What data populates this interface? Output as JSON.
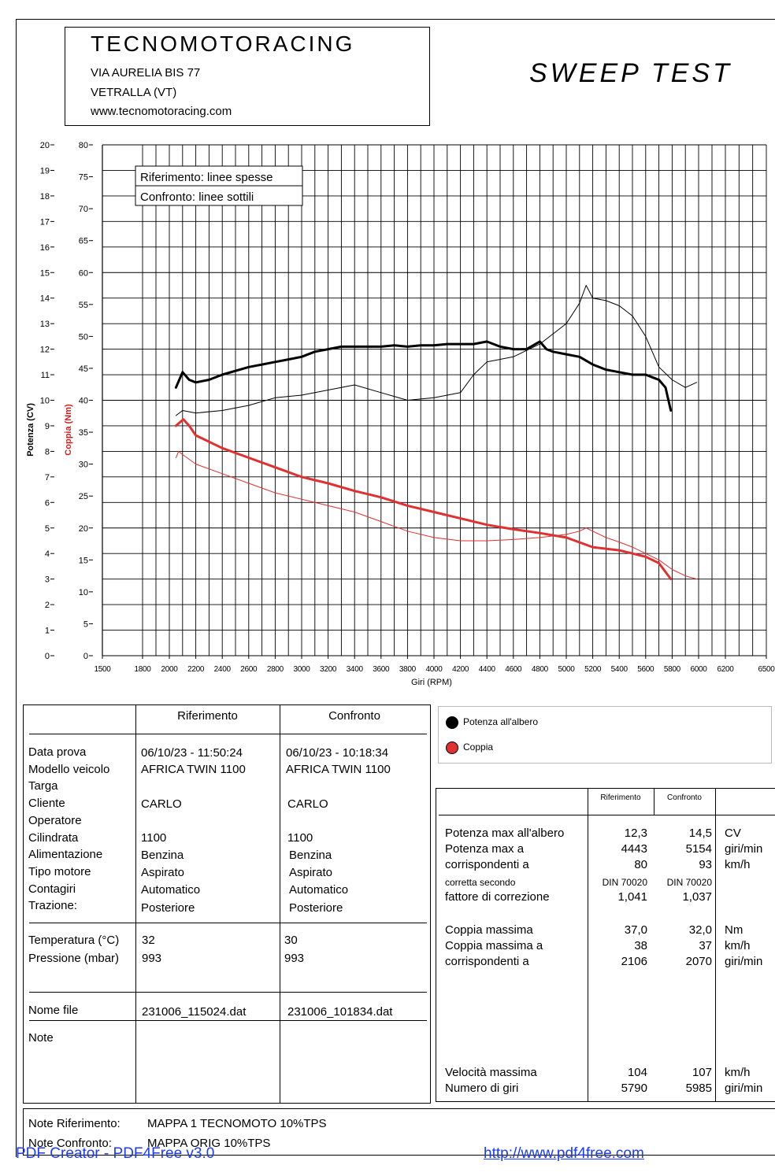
{
  "header": {
    "company": "TECNOMOTORACING",
    "address1": "VIA AURELIA BIS 77",
    "address2": "VETRALLA (VT)",
    "website": "www.tecnomotoracing.com",
    "title": "SWEEP TEST"
  },
  "chart_data": {
    "type": "line",
    "xlabel": "Giri (RPM)",
    "ylabel_left": "Potenza (CV)",
    "ylabel_right": "Coppia (Nm)",
    "x_ticks": [
      1500,
      1800,
      2000,
      2200,
      2400,
      2600,
      2800,
      3000,
      3200,
      3400,
      3600,
      3800,
      4000,
      4200,
      4400,
      4600,
      4800,
      5000,
      5200,
      5400,
      5600,
      5800,
      6000,
      6200,
      6500
    ],
    "xlim": [
      1500,
      6500
    ],
    "power_ticks": [
      0,
      1,
      2,
      3,
      4,
      5,
      6,
      7,
      8,
      9,
      10,
      11,
      12,
      13,
      14,
      15,
      16,
      17,
      18,
      19,
      20
    ],
    "power_lim": [
      0,
      20
    ],
    "torque_ticks": [
      0,
      5,
      10,
      15,
      20,
      25,
      30,
      35,
      40,
      45,
      50,
      55,
      60,
      65,
      70,
      75,
      80
    ],
    "torque_lim": [
      0,
      80
    ],
    "grid": true,
    "annotations": [
      "Riferimento: linee spesse",
      "Confronto: linee sottili"
    ],
    "legend": [
      "Potenza all'albero",
      "Coppia"
    ],
    "series": [
      {
        "name": "Potenza all'albero",
        "run": "Riferimento",
        "axis": "power",
        "color": "#000000",
        "width": 3,
        "x": [
          2050,
          2100,
          2150,
          2200,
          2300,
          2400,
          2600,
          2700,
          2800,
          2900,
          3000,
          3100,
          3200,
          3300,
          3400,
          3500,
          3600,
          3700,
          3800,
          3900,
          4000,
          4100,
          4200,
          4300,
          4400,
          4450,
          4500,
          4600,
          4700,
          4800,
          4850,
          4900,
          5000,
          5100,
          5200,
          5300,
          5400,
          5500,
          5600,
          5650,
          5700,
          5750,
          5790
        ],
        "y": [
          10.5,
          11.1,
          10.8,
          10.7,
          10.8,
          11.0,
          11.3,
          11.4,
          11.5,
          11.6,
          11.7,
          11.9,
          12.0,
          12.1,
          12.1,
          12.1,
          12.1,
          12.15,
          12.1,
          12.15,
          12.15,
          12.2,
          12.2,
          12.2,
          12.3,
          12.2,
          12.1,
          12.0,
          12.0,
          12.3,
          12.0,
          11.9,
          11.8,
          11.7,
          11.4,
          11.2,
          11.1,
          11.0,
          11.0,
          10.9,
          10.8,
          10.5,
          9.6
        ]
      },
      {
        "name": "Potenza all'albero",
        "run": "Confronto",
        "axis": "power",
        "color": "#000000",
        "width": 1,
        "x": [
          2050,
          2100,
          2200,
          2400,
          2600,
          2800,
          3000,
          3100,
          3200,
          3300,
          3400,
          3600,
          3800,
          4000,
          4200,
          4300,
          4400,
          4600,
          4800,
          5000,
          5100,
          5150,
          5200,
          5300,
          5400,
          5500,
          5600,
          5700,
          5800,
          5900,
          5985
        ],
        "y": [
          9.4,
          9.6,
          9.5,
          9.6,
          9.8,
          10.1,
          10.2,
          10.3,
          10.4,
          10.5,
          10.6,
          10.3,
          10.0,
          10.1,
          10.3,
          11.0,
          11.5,
          11.7,
          12.2,
          13.0,
          13.8,
          14.5,
          14.0,
          13.9,
          13.7,
          13.3,
          12.5,
          11.3,
          10.8,
          10.5,
          10.7
        ]
      },
      {
        "name": "Coppia",
        "run": "Riferimento",
        "axis": "torque",
        "color": "#e03030",
        "width": 3,
        "x": [
          2050,
          2106,
          2150,
          2200,
          2300,
          2400,
          2600,
          2800,
          3000,
          3200,
          3400,
          3600,
          3800,
          4000,
          4200,
          4400,
          4600,
          4800,
          5000,
          5200,
          5400,
          5500,
          5600,
          5700,
          5790
        ],
        "y": [
          36.0,
          37.0,
          36.0,
          34.5,
          33.5,
          32.5,
          31.0,
          29.5,
          28.0,
          27.0,
          25.8,
          24.8,
          23.5,
          22.5,
          21.5,
          20.5,
          19.8,
          19.2,
          18.5,
          17.0,
          16.5,
          16.0,
          15.5,
          14.5,
          12.0
        ]
      },
      {
        "name": "Coppia",
        "run": "Confronto",
        "axis": "torque",
        "color": "#e03030",
        "width": 1,
        "x": [
          2050,
          2070,
          2100,
          2200,
          2400,
          2600,
          2800,
          3000,
          3200,
          3400,
          3600,
          3800,
          4000,
          4200,
          4400,
          4600,
          4800,
          5000,
          5100,
          5150,
          5200,
          5300,
          5400,
          5500,
          5600,
          5700,
          5800,
          5900,
          5985
        ],
        "y": [
          31.0,
          32.0,
          31.5,
          30.0,
          28.5,
          27.0,
          25.5,
          24.5,
          23.5,
          22.5,
          21.0,
          19.5,
          18.5,
          18.0,
          18.0,
          18.2,
          18.5,
          19.0,
          19.5,
          20.0,
          19.5,
          18.5,
          17.8,
          17.0,
          16.0,
          15.0,
          13.5,
          12.5,
          12.0
        ]
      }
    ]
  },
  "legend_box": {
    "items": [
      {
        "label": "Potenza all'albero",
        "color": "#000000"
      },
      {
        "label": "Coppia",
        "color": "#e03030"
      }
    ]
  },
  "info_table": {
    "col_ref": "Riferimento",
    "col_cmp": "Confronto",
    "labels": [
      "Data prova",
      "Modello veicolo",
      "Targa",
      "Cliente",
      "Operatore",
      "Cilindrata",
      "Alimentazione",
      "Tipo motore",
      "Contagiri",
      "Trazione:"
    ],
    "ref_values": {
      "data": "06/10/23 - 11:50:24",
      "modello": "AFRICA TWIN 1100",
      "cliente": "CARLO",
      "cilindrata": "1100",
      "alimentazione": "Benzina",
      "tipo": "Aspirato",
      "contagiri": "Automatico",
      "trazione": "Posteriore"
    },
    "cmp_values": {
      "data": "06/10/23 - 10:18:34",
      "modello": "AFRICA TWIN 1100",
      "cliente": "CARLO",
      "cilindrata": "1100",
      "alimentazione": "Benzina",
      "tipo": "Aspirato",
      "contagiri": "Automatico",
      "trazione": "Posteriore"
    },
    "temp_label": "Temperatura (°C)",
    "press_label": "Pressione (mbar)",
    "ref_temp": "32",
    "ref_press": "993",
    "cmp_temp": "30",
    "cmp_press": "993",
    "file_label": "Nome file",
    "ref_file": "231006_115024.dat",
    "cmp_file": "231006_101834.dat",
    "note_label": "Note"
  },
  "results_table": {
    "col_ref": "Riferimento",
    "col_cmp": "Confronto",
    "rows": [
      {
        "label": "Potenza max all'albero",
        "ref": "12,3",
        "cmp": "14,5",
        "unit": "CV"
      },
      {
        "label": "Potenza max a",
        "ref": "4443",
        "cmp": "5154",
        "unit": "giri/min"
      },
      {
        "label": "corrispondenti a",
        "ref": "80",
        "cmp": "93",
        "unit": "km/h"
      },
      {
        "label": "corretta secondo",
        "ref": "DIN 70020",
        "cmp": "DIN 70020",
        "unit": ""
      },
      {
        "label": "fattore di correzione",
        "ref": "1,041",
        "cmp": "1,037",
        "unit": ""
      },
      {
        "label": "Coppia massima",
        "ref": "37,0",
        "cmp": "32,0",
        "unit": "Nm"
      },
      {
        "label": "Coppia massima a",
        "ref": "38",
        "cmp": "37",
        "unit": "km/h"
      },
      {
        "label": "corrispondenti a",
        "ref": "2106",
        "cmp": "2070",
        "unit": "giri/min"
      },
      {
        "label": "Velocità massima",
        "ref": "104",
        "cmp": "107",
        "unit": "km/h"
      },
      {
        "label": "Numero di giri",
        "ref": "5790",
        "cmp": "5985",
        "unit": "giri/min"
      }
    ]
  },
  "notes": {
    "ref_label": "Note Riferimento:",
    "ref_value": "MAPPA 1 TECNOMOTO 10%TPS",
    "cmp_label": "Note Confronto:",
    "cmp_value": "MAPPA ORIG 10%TPS"
  },
  "footer": {
    "creator": "PDF Creator - PDF4Free v3.0",
    "url": "http://www.pdf4free.com"
  }
}
